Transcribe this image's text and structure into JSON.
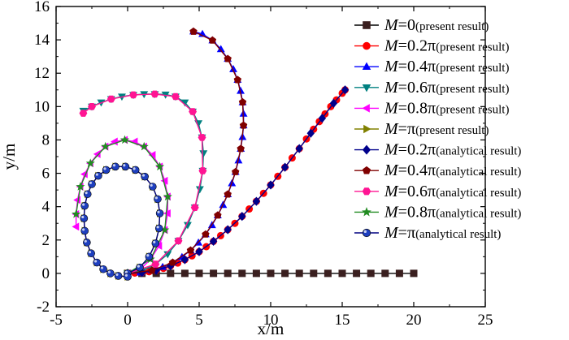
{
  "chart_data": {
    "type": "line",
    "xlabel": "x/m",
    "ylabel": "y/m",
    "xlim": [
      -5,
      25
    ],
    "ylim": [
      -2,
      16
    ],
    "xticks": [
      "-5",
      "0",
      "5",
      "10",
      "15",
      "20",
      "25"
    ],
    "yticks": [
      "-2",
      "0",
      "2",
      "4",
      "6",
      "8",
      "10",
      "12",
      "14",
      "16"
    ],
    "legend_position": "top-right",
    "series": [
      {
        "id": "p0",
        "symbol": "M",
        "eq": "=0",
        "note": "(present result)",
        "color": "#000000",
        "marker": "square",
        "markerColor": "#3a1f1f",
        "x": [
          0,
          1,
          2,
          3,
          4,
          5,
          6,
          7,
          8,
          9,
          10,
          11,
          12,
          13,
          14,
          15,
          16,
          17,
          18,
          19,
          20
        ],
        "y": [
          0,
          0,
          0,
          0,
          0,
          0,
          0,
          0,
          0,
          0,
          0,
          0,
          0,
          0,
          0,
          0,
          0,
          0,
          0,
          0,
          0
        ]
      },
      {
        "id": "p02",
        "symbol": "M",
        "eq": "=0.2π",
        "note": "(present result)",
        "color": "#ff0000",
        "marker": "circle",
        "markerColor": "#ff0000",
        "x": [
          0,
          0.5,
          1.0,
          1.5,
          2.0,
          2.5,
          3.0,
          3.5,
          4.0,
          4.5,
          5.0,
          5.5,
          6.0,
          6.5,
          7.0,
          7.5,
          8.0,
          8.5,
          9.0,
          9.5,
          10.0,
          10.5,
          11.0,
          11.5,
          12.0,
          12.5,
          13.0,
          13.4,
          13.8,
          14.2,
          14.6,
          15.0,
          15.2
        ],
        "y": [
          0,
          0.02,
          0.05,
          0.1,
          0.18,
          0.3,
          0.45,
          0.62,
          0.82,
          1.05,
          1.3,
          1.6,
          1.92,
          2.26,
          2.62,
          3.0,
          3.42,
          3.86,
          4.32,
          4.8,
          5.3,
          5.82,
          6.36,
          6.92,
          7.48,
          8.06,
          8.64,
          9.1,
          9.56,
          10.0,
          10.4,
          10.8,
          11.0
        ]
      },
      {
        "id": "p04",
        "symbol": "M",
        "eq": "=0.4π",
        "note": "(present result)",
        "color": "#0000ff",
        "marker": "triangle-up",
        "markerColor": "#0000ff",
        "x": [
          0,
          0.9,
          1.7,
          2.45,
          3.15,
          3.8,
          4.4,
          4.95,
          5.45,
          5.9,
          6.3,
          6.67,
          7.0,
          7.29,
          7.54,
          7.75,
          7.91,
          8.03,
          8.1,
          8.1,
          8.04,
          7.9,
          7.69,
          7.39,
          7.0,
          6.52,
          5.93,
          5.23,
          4.6
        ],
        "y": [
          0,
          0.05,
          0.18,
          0.38,
          0.65,
          0.98,
          1.38,
          1.84,
          2.34,
          2.89,
          3.48,
          4.1,
          4.74,
          5.4,
          6.08,
          6.77,
          7.47,
          8.17,
          8.87,
          9.57,
          10.26,
          10.94,
          11.6,
          12.24,
          12.86,
          13.44,
          13.97,
          14.35,
          14.5
        ]
      },
      {
        "id": "p06",
        "symbol": "M",
        "eq": "=0.6π",
        "note": "(present result)",
        "color": "#008080",
        "marker": "triangle-down",
        "markerColor": "#008080",
        "x": [
          0,
          1.0,
          1.95,
          2.8,
          3.55,
          4.2,
          4.7,
          5.05,
          5.25,
          5.3,
          5.2,
          4.95,
          4.55,
          4.0,
          3.35,
          2.65,
          1.9,
          1.15,
          0.4,
          -0.4,
          -1.15,
          -1.85,
          -2.5,
          -3.1
        ],
        "y": [
          0,
          0.15,
          0.55,
          1.15,
          1.95,
          2.9,
          3.95,
          5.05,
          6.15,
          7.2,
          8.15,
          9.0,
          9.7,
          10.25,
          10.6,
          10.72,
          10.75,
          10.75,
          10.7,
          10.6,
          10.45,
          10.25,
          10.0,
          9.75
        ]
      },
      {
        "id": "p08",
        "symbol": "M",
        "eq": "=0.8π",
        "note": "(present result)",
        "color": "#ff00ff",
        "marker": "triangle-left",
        "markerColor": "#ff00ff",
        "x": [
          0,
          0.9,
          1.6,
          2.2,
          2.6,
          2.8,
          2.8,
          2.6,
          2.25,
          1.75,
          1.15,
          0.5,
          -0.2,
          -0.9,
          -1.55,
          -2.1,
          -2.6,
          -3.0,
          -3.3,
          -3.5,
          -3.6,
          -3.6
        ],
        "y": [
          0,
          0.25,
          0.85,
          1.65,
          2.6,
          3.6,
          4.6,
          5.55,
          6.4,
          7.1,
          7.6,
          7.9,
          8.0,
          7.9,
          7.6,
          7.15,
          6.6,
          5.95,
          5.2,
          4.4,
          3.55,
          2.8
        ]
      },
      {
        "id": "p1",
        "symbol": "M",
        "eq": "=π",
        "note": "(present result)",
        "color": "#808000",
        "marker": "triangle-right",
        "markerColor": "#808000",
        "x": [
          0,
          0.85,
          1.5,
          1.95,
          2.2,
          2.25,
          2.1,
          1.75,
          1.2,
          0.55,
          -0.15,
          -0.85,
          -1.5,
          -2.05,
          -2.5,
          -2.8,
          -3.0,
          -3.05,
          -3.0,
          -2.85,
          -2.55,
          -2.15,
          -1.7,
          -1.2,
          -0.65,
          0
        ],
        "y": [
          0,
          0.35,
          1.0,
          1.8,
          2.7,
          3.6,
          4.45,
          5.2,
          5.8,
          6.2,
          6.4,
          6.4,
          6.2,
          5.85,
          5.35,
          4.75,
          4.05,
          3.3,
          2.55,
          1.85,
          1.2,
          0.65,
          0.25,
          0.0,
          -0.15,
          -0.2
        ]
      },
      {
        "id": "a02",
        "symbol": "M",
        "eq": "=0.2π",
        "note": "(analytical result)",
        "color": "#00008b",
        "marker": "diamond",
        "markerColor": "#00008b",
        "x": [
          0,
          1.0,
          2.0,
          3.0,
          4.0,
          5.0,
          6.0,
          7.0,
          8.0,
          9.0,
          10.0,
          11.0,
          12.0,
          12.8,
          13.6,
          14.4,
          15.2
        ],
        "y": [
          0,
          0.05,
          0.18,
          0.45,
          0.82,
          1.3,
          1.92,
          2.62,
          3.42,
          4.32,
          5.3,
          6.36,
          7.48,
          8.4,
          9.3,
          10.2,
          11.0
        ]
      },
      {
        "id": "a04",
        "symbol": "M",
        "eq": "=0.4π",
        "note": "(analytical result)",
        "color": "#800000",
        "marker": "pentagon",
        "markerColor": "#800000",
        "x": [
          0,
          1.7,
          3.15,
          4.4,
          5.45,
          6.3,
          7.0,
          7.54,
          7.91,
          8.1,
          8.04,
          7.69,
          7.0,
          5.93,
          4.6
        ],
        "y": [
          0,
          0.18,
          0.65,
          1.38,
          2.34,
          3.48,
          4.74,
          6.08,
          7.47,
          8.87,
          10.26,
          11.6,
          12.86,
          13.97,
          14.5
        ]
      },
      {
        "id": "a06",
        "symbol": "M",
        "eq": "=0.6π",
        "note": "(analytical result)",
        "color": "#ff1493",
        "marker": "hexagon",
        "markerColor": "#ff1493",
        "x": [
          0,
          1.95,
          3.55,
          4.7,
          5.25,
          5.2,
          4.55,
          3.35,
          1.9,
          0.4,
          -1.15,
          -2.5,
          -3.1
        ],
        "y": [
          0,
          0.55,
          1.95,
          3.95,
          6.15,
          8.15,
          9.7,
          10.6,
          10.75,
          10.7,
          10.45,
          10.0,
          9.6
        ]
      },
      {
        "id": "a08",
        "symbol": "M",
        "eq": "=0.8π",
        "note": "(analytical result)",
        "color": "#228b22",
        "marker": "star",
        "markerColor": "#228b22",
        "x": [
          0,
          1.6,
          2.6,
          2.8,
          2.25,
          1.15,
          -0.2,
          -1.55,
          -2.6,
          -3.3,
          -3.6
        ],
        "y": [
          0,
          0.85,
          2.6,
          4.6,
          6.4,
          7.6,
          8.0,
          7.6,
          6.6,
          5.2,
          3.55
        ]
      },
      {
        "id": "a1",
        "symbol": "M",
        "eq": "=π",
        "note": "(analytical result)",
        "color": "#000080",
        "marker": "ball",
        "markerColor": "#1e3fbf",
        "x": [
          0,
          0.85,
          1.5,
          1.95,
          2.2,
          2.25,
          2.1,
          1.75,
          1.2,
          0.55,
          -0.15,
          -0.85,
          -1.5,
          -2.05,
          -2.5,
          -2.8,
          -3.0,
          -3.05,
          -3.0,
          -2.85,
          -2.55,
          -2.15,
          -1.7,
          -1.2,
          -0.65,
          0
        ],
        "y": [
          0,
          0.35,
          1.0,
          1.8,
          2.7,
          3.6,
          4.45,
          5.2,
          5.8,
          6.2,
          6.4,
          6.4,
          6.2,
          5.85,
          5.35,
          4.75,
          4.05,
          3.3,
          2.55,
          1.85,
          1.2,
          0.65,
          0.25,
          0.0,
          -0.15,
          -0.2
        ]
      }
    ]
  }
}
